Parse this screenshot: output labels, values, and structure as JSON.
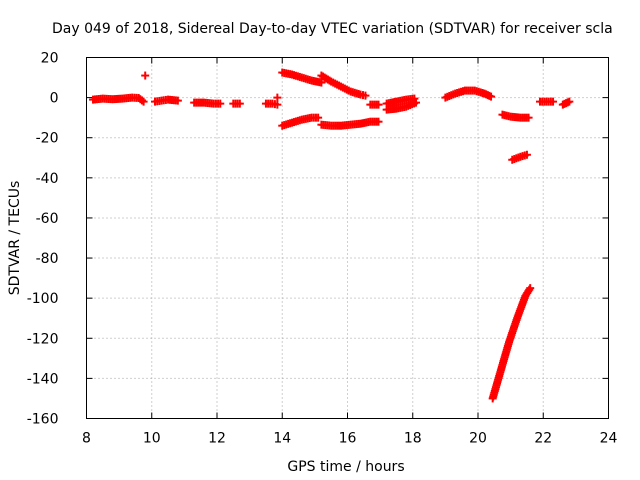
{
  "chart_data": {
    "type": "scatter",
    "title": "Day 049 of 2018, Sidereal Day-to-day VTEC variation (SDTVAR) for receiver scla",
    "xlabel": "GPS time / hours",
    "ylabel": "SDTVAR / TECUs",
    "xlim": [
      8,
      24
    ],
    "ylim": [
      -160,
      20
    ],
    "xticks": [
      8,
      10,
      12,
      14,
      16,
      18,
      20,
      22,
      24
    ],
    "yticks": [
      -160,
      -140,
      -120,
      -100,
      -80,
      -60,
      -40,
      -20,
      0,
      20
    ],
    "grid": true,
    "marker": "plus",
    "color": "#ff0000",
    "segments": [
      {
        "x": [
          8.2,
          8.5,
          8.8,
          9.1,
          9.4,
          9.6,
          9.75
        ],
        "y": [
          -1,
          -0.5,
          -0.8,
          -0.5,
          0,
          -0.2,
          -2
        ]
      },
      {
        "x": [
          9.8
        ],
        "y": [
          11
        ]
      },
      {
        "x": [
          10.1,
          10.3,
          10.5,
          10.8
        ],
        "y": [
          -2,
          -1.5,
          -1,
          -1.5
        ]
      },
      {
        "x": [
          11.3,
          11.6,
          11.9,
          12.1
        ],
        "y": [
          -2.5,
          -2.5,
          -3,
          -3
        ]
      },
      {
        "x": [
          12.5,
          12.7
        ],
        "y": [
          -3,
          -3
        ]
      },
      {
        "x": [
          13.5,
          13.7,
          13.85
        ],
        "y": [
          -3,
          -3,
          -3.5
        ]
      },
      {
        "x": [
          13.85
        ],
        "y": [
          0
        ]
      },
      {
        "x": [
          14.0,
          14.3,
          14.6,
          14.9,
          15.2
        ],
        "y": [
          12.5,
          11.5,
          10,
          8.5,
          7.5
        ]
      },
      {
        "x": [
          15.2,
          15.5,
          15.8,
          16.1,
          16.4,
          16.55
        ],
        "y": [
          11,
          8,
          5.5,
          3,
          1.5,
          1
        ]
      },
      {
        "x": [
          14.0,
          14.3,
          14.6,
          14.9,
          15.1
        ],
        "y": [
          -14,
          -12.5,
          -11,
          -10,
          -10
        ]
      },
      {
        "x": [
          15.2,
          15.5,
          15.8,
          16.1,
          16.4,
          16.7,
          16.95
        ],
        "y": [
          -13.5,
          -14,
          -14,
          -13.5,
          -13,
          -12,
          -12
        ]
      },
      {
        "x": [
          16.7,
          16.95
        ],
        "y": [
          -3.5,
          -3.5
        ]
      },
      {
        "x": [
          17.2,
          17.5,
          17.8,
          18.05
        ],
        "y": [
          -3,
          -2,
          -1,
          -0.5
        ]
      },
      {
        "x": [
          17.2,
          17.5,
          17.8,
          18.1
        ],
        "y": [
          -6,
          -5.5,
          -4.5,
          -2.5
        ]
      },
      {
        "x": [
          19.0,
          19.3,
          19.6,
          19.9,
          20.2,
          20.4
        ],
        "y": [
          0,
          2,
          3.5,
          3.5,
          2,
          0.5
        ]
      },
      {
        "x": [
          20.75,
          21.0,
          21.3,
          21.55
        ],
        "y": [
          -8.5,
          -9.5,
          -10,
          -10
        ]
      },
      {
        "x": [
          21.05,
          21.3,
          21.5
        ],
        "y": [
          -31,
          -29.5,
          -28.5
        ]
      },
      {
        "x": [
          21.9,
          22.1,
          22.3
        ],
        "y": [
          -2,
          -2,
          -2
        ]
      },
      {
        "x": [
          22.6,
          22.8
        ],
        "y": [
          -3.5,
          -2
        ]
      },
      {
        "x": [
          20.45,
          20.7,
          20.95,
          21.2,
          21.45,
          21.6
        ],
        "y": [
          -150,
          -136,
          -122,
          -110,
          -99,
          -95
        ]
      }
    ]
  }
}
